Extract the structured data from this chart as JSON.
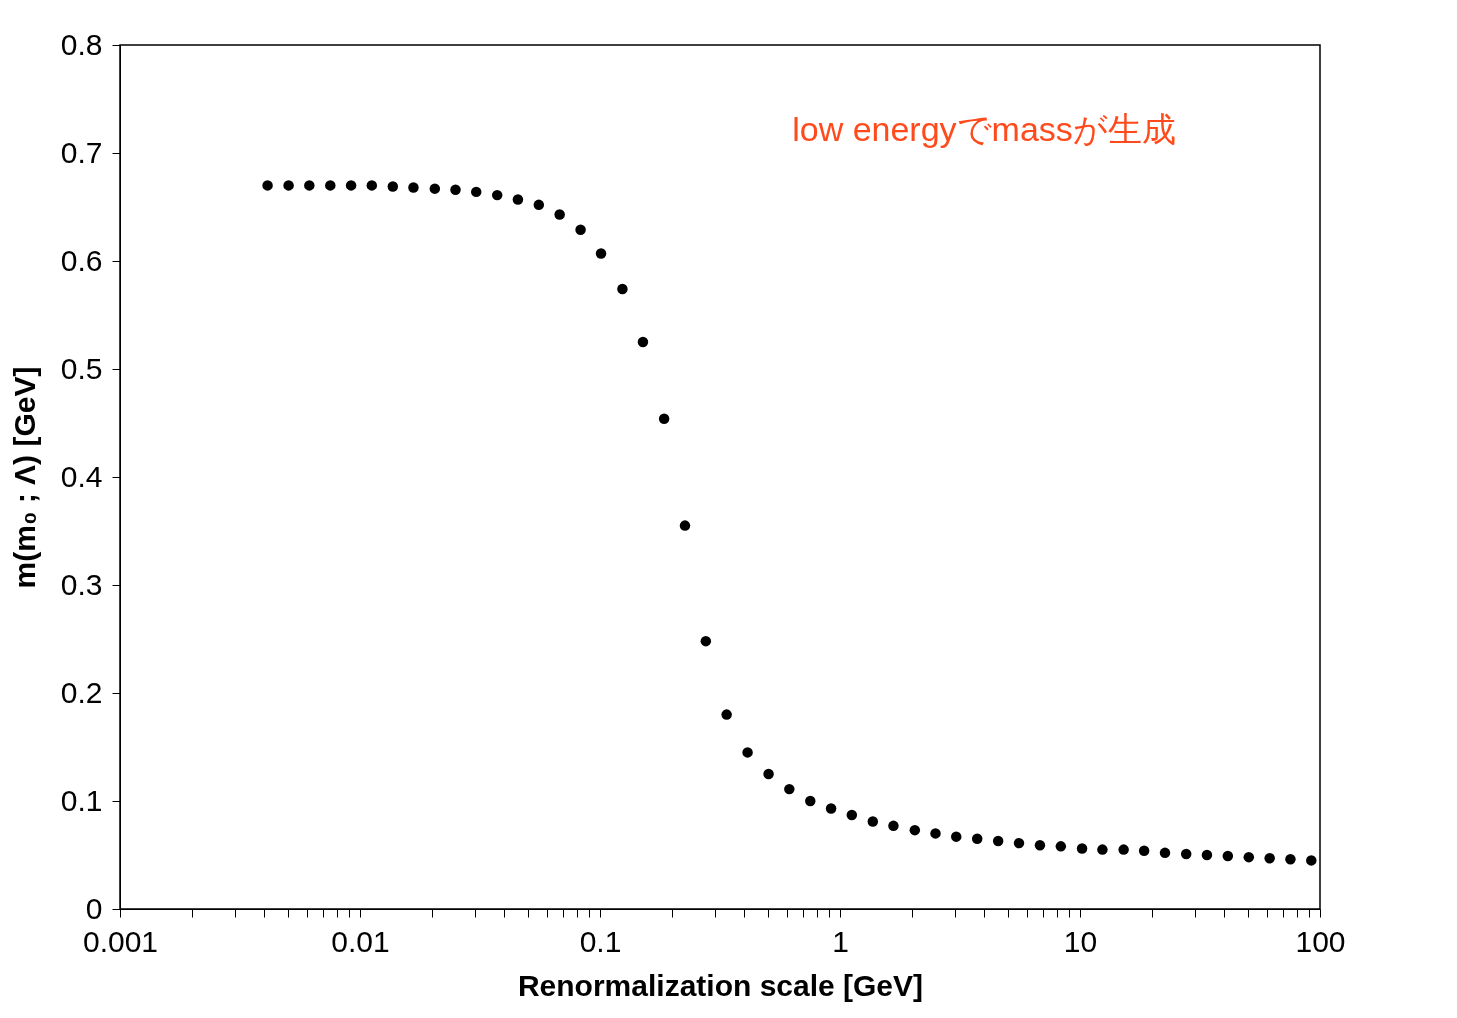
{
  "chart_data": {
    "type": "scatter",
    "xlabel": "Renormalization scale [GeV]",
    "ylabel": "m(m₀ ; Λ) [GeV]",
    "annotations": [
      "low energyでmassが生成"
    ],
    "log": "x",
    "grid": false,
    "marker": "circle",
    "xlim": [
      0.001,
      100
    ],
    "xticks": [
      0.001,
      {
        "value": 0.002,
        "label": null
      },
      {
        "value": 0.003,
        "label": null
      },
      {
        "value": 0.004,
        "label": null
      },
      {
        "value": 0.005,
        "label": null
      },
      {
        "value": 0.006,
        "label": null
      },
      {
        "value": 0.007,
        "label": null
      },
      {
        "value": 0.008,
        "label": null
      },
      {
        "value": 0.009,
        "label": null
      },
      0.01,
      {
        "value": 0.02,
        "label": null
      },
      {
        "value": 0.03,
        "label": null
      },
      {
        "value": 0.04,
        "label": null
      },
      {
        "value": 0.05,
        "label": null
      },
      {
        "value": 0.06,
        "label": null
      },
      {
        "value": 0.07,
        "label": null
      },
      {
        "value": 0.08,
        "label": null
      },
      {
        "value": 0.09,
        "label": null
      },
      0.1,
      {
        "value": 0.2,
        "label": null
      },
      {
        "value": 0.3,
        "label": null
      },
      {
        "value": 0.4,
        "label": null
      },
      {
        "value": 0.5,
        "label": null
      },
      {
        "value": 0.6,
        "label": null
      },
      {
        "value": 0.7,
        "label": null
      },
      {
        "value": 0.8,
        "label": null
      },
      {
        "value": 0.9,
        "label": null
      },
      1,
      {
        "value": 2,
        "label": null
      },
      {
        "value": 3,
        "label": null
      },
      {
        "value": 4,
        "label": null
      },
      {
        "value": 5,
        "label": null
      },
      {
        "value": 6,
        "label": null
      },
      {
        "value": 7,
        "label": null
      },
      {
        "value": 8,
        "label": null
      },
      {
        "value": 9,
        "label": null
      },
      10,
      {
        "value": 20,
        "label": null
      },
      {
        "value": 30,
        "label": null
      },
      {
        "value": 40,
        "label": null
      },
      {
        "value": 50,
        "label": null
      },
      {
        "value": 60,
        "label": null
      },
      {
        "value": 70,
        "label": null
      },
      {
        "value": 80,
        "label": null
      },
      {
        "value": 90,
        "label": null
      },
      100
    ],
    "ylim": [
      0,
      0.8
    ],
    "yticks": [
      0,
      0.1,
      0.2,
      0.3,
      0.4,
      0.5,
      0.6,
      0.7,
      0.8
    ],
    "series": [
      {
        "color": "#000000",
        "x": [
          0.00412,
          0.00504,
          0.00615,
          0.00752,
          0.00918,
          0.0112,
          0.0137,
          0.0167,
          0.0205,
          0.025,
          0.0305,
          0.0373,
          0.0455,
          0.0556,
          0.0679,
          0.083,
          0.101,
          0.124,
          0.151,
          0.185,
          0.226,
          0.276,
          0.337,
          0.412,
          0.504,
          0.615,
          0.752,
          0.918,
          1.12,
          1.37,
          1.67,
          2.05,
          2.5,
          3.05,
          3.73,
          4.56,
          5.57,
          6.81,
          8.32,
          10.2,
          12.4,
          15.2,
          18.5,
          22.6,
          27.7,
          33.8,
          41.3,
          50.5,
          61.7,
          75.3,
          92.0
        ],
        "values": [
          0.67,
          0.67,
          0.67,
          0.67,
          0.67,
          0.67,
          0.669,
          0.668,
          0.667,
          0.666,
          0.664,
          0.661,
          0.657,
          0.652,
          0.643,
          0.629,
          0.607,
          0.574,
          0.525,
          0.454,
          0.355,
          0.248,
          0.18,
          0.145,
          0.125,
          0.111,
          0.1,
          0.093,
          0.087,
          0.081,
          0.077,
          0.073,
          0.07,
          0.067,
          0.065,
          0.063,
          0.061,
          0.059,
          0.058,
          0.056,
          0.055,
          0.055,
          0.054,
          0.052,
          0.051,
          0.05,
          0.049,
          0.048,
          0.047,
          0.046,
          0.045
        ]
      }
    ]
  }
}
